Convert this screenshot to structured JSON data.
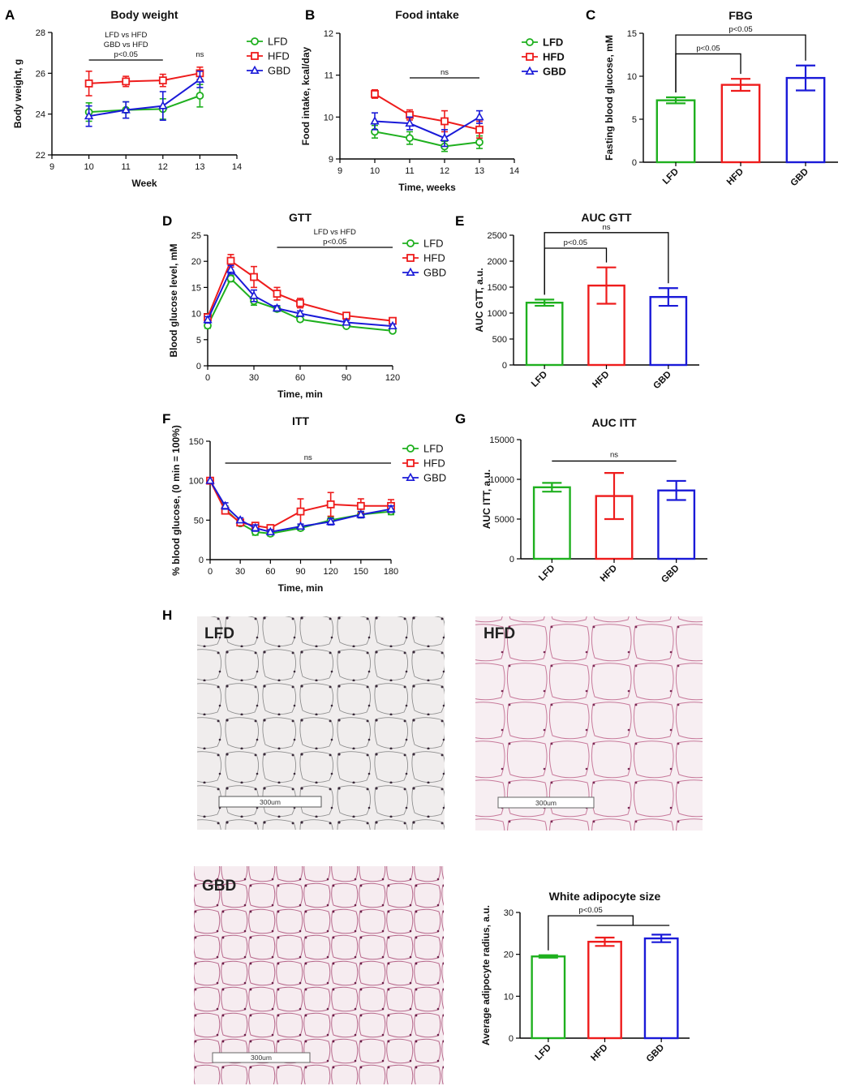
{
  "figure": {
    "panel_letters": [
      "A",
      "B",
      "C",
      "D",
      "E",
      "F",
      "G",
      "H"
    ]
  },
  "histology": {
    "images": [
      {
        "label": "LFD",
        "scale_bar": "300um",
        "tint": "#f0eded",
        "stain": "#3a2a3a"
      },
      {
        "label": "HFD",
        "scale_bar": "300um",
        "tint": "#f7eef2",
        "stain": "#b9577f"
      },
      {
        "label": "GBD",
        "scale_bar": "300um",
        "tint": "#f6ecf0",
        "stain": "#a54d75"
      }
    ]
  },
  "colors": {
    "LFD": "#1fb01f",
    "HFD": "#ee1c1c",
    "GBD": "#1a1ad8"
  },
  "chart_data": [
    {
      "id": "A",
      "type": "line",
      "title": "Body weight",
      "xlabel": "Week",
      "ylabel": "Body weight, g",
      "xlim": [
        9,
        14
      ],
      "xticks": [
        9,
        10,
        11,
        12,
        13,
        14
      ],
      "ylim": [
        22,
        28
      ],
      "yticks": [
        22,
        24,
        26,
        28
      ],
      "x": [
        10,
        11,
        12,
        13
      ],
      "series": [
        {
          "name": "LFD",
          "values": [
            24.1,
            24.2,
            24.25,
            24.9
          ],
          "errors": [
            0.45,
            0.4,
            0.5,
            0.55
          ],
          "marker": "circle"
        },
        {
          "name": "HFD",
          "values": [
            25.5,
            25.6,
            25.65,
            26.0
          ],
          "errors": [
            0.6,
            0.25,
            0.3,
            0.3
          ],
          "marker": "square"
        },
        {
          "name": "GBD",
          "values": [
            23.9,
            24.2,
            24.4,
            25.7
          ],
          "errors": [
            0.5,
            0.4,
            0.7,
            0.4
          ],
          "marker": "triangle"
        }
      ],
      "annotations": [
        {
          "lines": [
            "LFD vs HFD",
            "GBD vs HFD",
            "p<0.05"
          ],
          "x_from": 10,
          "x_to": 12
        },
        {
          "lines": [
            "ns"
          ],
          "x_from": 13,
          "x_to": 13
        }
      ]
    },
    {
      "id": "B",
      "type": "line",
      "title": "Food intake",
      "xlabel": "Time, weeks",
      "ylabel": "Food intake, kcal/day",
      "xlim": [
        9,
        14
      ],
      "xticks": [
        9,
        10,
        11,
        12,
        13,
        14
      ],
      "ylim": [
        9,
        12
      ],
      "yticks": [
        9,
        10,
        11,
        12
      ],
      "x": [
        10,
        11,
        12,
        13
      ],
      "series": [
        {
          "name": "LFD",
          "values": [
            9.65,
            9.5,
            9.3,
            9.4
          ],
          "errors": [
            0.15,
            0.15,
            0.12,
            0.15
          ],
          "marker": "circle"
        },
        {
          "name": "HFD",
          "values": [
            10.55,
            10.05,
            9.9,
            9.7
          ],
          "errors": [
            0.1,
            0.12,
            0.25,
            0.2
          ],
          "marker": "square"
        },
        {
          "name": "GBD",
          "values": [
            9.9,
            9.85,
            9.5,
            10.0
          ],
          "errors": [
            0.2,
            0.15,
            0.2,
            0.15
          ],
          "marker": "triangle"
        }
      ],
      "annotations": [
        {
          "lines": [
            "ns"
          ],
          "x_from": 11,
          "x_to": 13
        }
      ]
    },
    {
      "id": "C",
      "type": "bar",
      "title": "FBG",
      "xlabel": "",
      "ylabel": "Fasting blood glucose, mM",
      "categories": [
        "LFD",
        "HFD",
        "GBD"
      ],
      "values": [
        7.2,
        9.0,
        9.8
      ],
      "errors": [
        0.35,
        0.7,
        1.45
      ],
      "ylim": [
        0,
        15
      ],
      "yticks": [
        0,
        5,
        10,
        15
      ],
      "brackets": [
        {
          "label": "p<0.05",
          "from": 0,
          "to": 1,
          "level": 12.6
        },
        {
          "label": "p<0.05",
          "from": 0,
          "to": 2,
          "level": 14.8
        }
      ]
    },
    {
      "id": "D",
      "type": "line",
      "title": "GTT",
      "xlabel": "Time, min",
      "ylabel": "Blood glucose level, mM",
      "xlim": [
        0,
        120
      ],
      "xticks": [
        0,
        30,
        60,
        90,
        120
      ],
      "ylim": [
        0,
        25
      ],
      "yticks": [
        0,
        5,
        10,
        15,
        20,
        25
      ],
      "x": [
        0,
        15,
        30,
        45,
        60,
        90,
        120
      ],
      "series": [
        {
          "name": "LFD",
          "values": [
            7.7,
            16.7,
            12.4,
            10.9,
            8.9,
            7.6,
            6.7
          ],
          "errors": [
            0.5,
            0.6,
            0.8,
            0.5,
            0.4,
            0.3,
            0.3
          ],
          "marker": "circle"
        },
        {
          "name": "HFD",
          "values": [
            9.3,
            20.1,
            17.0,
            13.8,
            12.0,
            9.6,
            8.6
          ],
          "errors": [
            0.6,
            1.2,
            2.0,
            1.2,
            0.9,
            0.6,
            0.4
          ],
          "marker": "square"
        },
        {
          "name": "GBD",
          "values": [
            8.8,
            18.4,
            13.4,
            11.0,
            10.0,
            8.3,
            7.6
          ],
          "errors": [
            0.6,
            0.8,
            1.1,
            0.5,
            0.5,
            0.4,
            0.4
          ],
          "marker": "triangle"
        }
      ],
      "annotations": [
        {
          "lines": [
            "LFD vs HFD",
            "p<0.05"
          ],
          "x_from": 45,
          "x_to": 120
        }
      ]
    },
    {
      "id": "E",
      "type": "bar",
      "title": "AUC GTT",
      "xlabel": "",
      "ylabel": "AUC  GTT, a.u.",
      "categories": [
        "LFD",
        "HFD",
        "GBD"
      ],
      "values": [
        1200,
        1530,
        1310
      ],
      "errors": [
        60,
        350,
        170
      ],
      "ylim": [
        0,
        2500
      ],
      "yticks": [
        0,
        500,
        1000,
        1500,
        2000,
        2500
      ],
      "brackets": [
        {
          "label": "p<0.05",
          "from": 0,
          "to": 1,
          "level": 2250
        },
        {
          "label": "ns",
          "from": 0,
          "to": 2,
          "level": 2550
        }
      ]
    },
    {
      "id": "F",
      "type": "line",
      "title": "ITT",
      "xlabel": "Time, min",
      "ylabel": "% blood glucose, (0 min = 100%)",
      "xlim": [
        0,
        180
      ],
      "xticks": [
        0,
        30,
        60,
        90,
        120,
        150,
        180
      ],
      "ylim": [
        0,
        150
      ],
      "yticks": [
        0,
        50,
        100,
        150
      ],
      "x": [
        0,
        15,
        30,
        45,
        60,
        90,
        120,
        150,
        180
      ],
      "series": [
        {
          "name": "LFD",
          "values": [
            100,
            64,
            46,
            35,
            33,
            40,
            50,
            57,
            61
          ],
          "errors": [
            0,
            4,
            3,
            4,
            3,
            3,
            4,
            4,
            4
          ],
          "marker": "circle"
        },
        {
          "name": "HFD",
          "values": [
            100,
            62,
            47,
            43,
            40,
            61,
            70,
            68,
            68
          ],
          "errors": [
            0,
            4,
            3,
            4,
            4,
            16,
            15,
            9,
            8
          ],
          "marker": "square"
        },
        {
          "name": "GBD",
          "values": [
            100,
            68,
            50,
            40,
            35,
            42,
            48,
            57,
            64
          ],
          "errors": [
            0,
            4,
            3,
            4,
            3,
            3,
            4,
            4,
            4
          ],
          "marker": "triangle"
        }
      ],
      "annotations": [
        {
          "lines": [
            "ns"
          ],
          "x_from": 15,
          "x_to": 180
        }
      ]
    },
    {
      "id": "G",
      "type": "bar",
      "title": "AUC ITT",
      "xlabel": "",
      "ylabel": "AUC  ITT, a.u.",
      "categories": [
        "LFD",
        "HFD",
        "GBD"
      ],
      "values": [
        9000,
        7900,
        8600
      ],
      "errors": [
        550,
        2900,
        1200
      ],
      "ylim": [
        0,
        15000
      ],
      "yticks": [
        0,
        5000,
        10000,
        15000
      ],
      "brackets": [
        {
          "label": "ns",
          "from": 0,
          "to": 2,
          "level": 12300,
          "style": "line"
        }
      ]
    },
    {
      "id": "I",
      "type": "bar",
      "title": "White adipocyte size",
      "xlabel": "",
      "ylabel": "Average adipocyte radius, a.u.",
      "categories": [
        "LFD",
        "HFD",
        "GBD"
      ],
      "values": [
        19.5,
        23.0,
        23.8
      ],
      "errors": [
        0.3,
        1.0,
        0.9
      ],
      "ylim": [
        0,
        30
      ],
      "yticks": [
        0,
        10,
        20,
        30
      ],
      "brackets": [
        {
          "label": "p<0.05",
          "from": 0,
          "to": [
            1,
            2
          ],
          "level": 29.2,
          "style": "group"
        }
      ]
    }
  ]
}
